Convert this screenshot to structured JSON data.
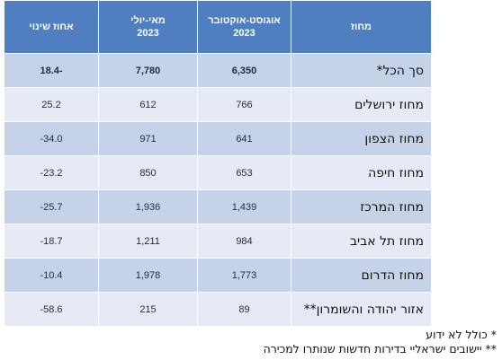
{
  "table": {
    "headers": {
      "district": "מחוז",
      "aug_oct_line1": "אוגוסט-אוקטובר",
      "aug_oct_line2": "2023",
      "may_jul_line1": "מאי-יולי",
      "may_jul_line2": "2023",
      "change": "אחוז שינוי"
    },
    "rows": [
      {
        "district": "סך הכל*",
        "aug_oct": "6,350",
        "may_jul": "7,780",
        "change": "-18.4"
      },
      {
        "district": "מחוז ירושלים",
        "aug_oct": "766",
        "may_jul": "612",
        "change": "25.2"
      },
      {
        "district": "מחוז הצפון",
        "aug_oct": "641",
        "may_jul": "971",
        "change": "34.0-"
      },
      {
        "district": "מחוז חיפה",
        "aug_oct": "653",
        "may_jul": "850",
        "change": "23.2-"
      },
      {
        "district": "מחוז המרכז",
        "aug_oct": "1,439",
        "may_jul": "1,936",
        "change": "25.7-"
      },
      {
        "district": "מחוז תל אביב",
        "aug_oct": "984",
        "may_jul": "1,211",
        "change": "18.7-"
      },
      {
        "district": "מחוז הדרום",
        "aug_oct": "1,773",
        "may_jul": "1,978",
        "change": "10.4-"
      },
      {
        "district": "אזור יהודה והשומרון**",
        "aug_oct": "89",
        "may_jul": "215",
        "change": "58.6-"
      }
    ]
  },
  "notes": {
    "note1": "* כולל לא ידוע",
    "note2": "** יישובים ישראליי בדירות חדשות שנותרו למכירה"
  }
}
